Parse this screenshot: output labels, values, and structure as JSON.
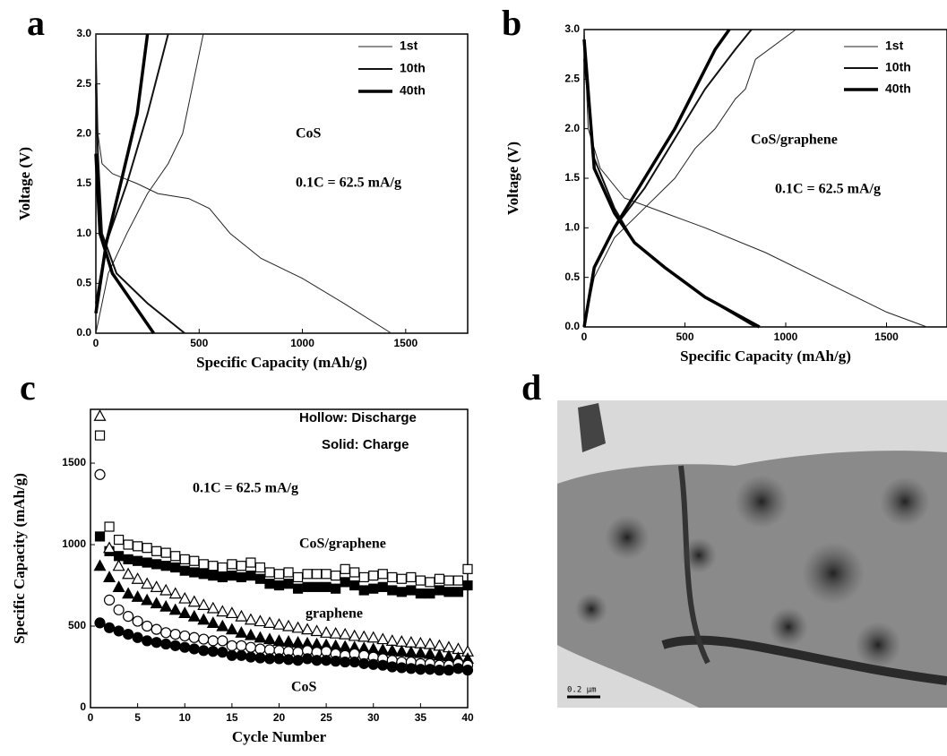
{
  "chart_data": [
    {
      "type": "line",
      "panel_label": "a",
      "x_label": "Specific Capacity (mAh/g)",
      "y_label": "Voltage (V)",
      "xlim": [
        0,
        1800
      ],
      "xticks": [
        0,
        500,
        1000,
        1500
      ],
      "ylim": [
        0,
        3
      ],
      "yticks": [
        {
          "value": 0,
          "label": "0.0"
        },
        0.5,
        {
          "value": 1,
          "label": "1.0"
        },
        1.5,
        {
          "value": 2,
          "label": "2.0"
        },
        2.5,
        {
          "value": 3,
          "label": "3.0"
        }
      ],
      "annotations": [
        "CoS",
        "0.1C = 62.5 mA/g"
      ],
      "series": [
        {
          "name": "1st",
          "color": "#222",
          "width": 1,
          "x": [
            0,
            10,
            30,
            80,
            200,
            300,
            450,
            550,
            650,
            800,
            1000,
            1200,
            1430,
            null,
            0,
            60,
            150,
            250,
            350,
            420,
            470,
            520
          ],
          "values": [
            3.0,
            2.0,
            1.7,
            1.6,
            1.5,
            1.4,
            1.35,
            1.25,
            1.0,
            0.75,
            0.55,
            0.3,
            0,
            null,
            0,
            0.6,
            1.0,
            1.4,
            1.7,
            2.0,
            2.5,
            3.0
          ]
        },
        {
          "name": "10th",
          "color": "#111",
          "width": 2,
          "x": [
            0,
            10,
            30,
            100,
            250,
            430,
            null,
            0,
            50,
            150,
            250,
            350
          ],
          "values": [
            2.5,
            1.8,
            1.0,
            0.6,
            0.3,
            0,
            null,
            0.3,
            0.9,
            1.5,
            2.2,
            3.0
          ]
        },
        {
          "name": "40th",
          "color": "#000",
          "width": 3.5,
          "x": [
            0,
            20,
            80,
            180,
            280,
            null,
            0,
            50,
            120,
            200,
            250
          ],
          "values": [
            1.8,
            1.0,
            0.6,
            0.3,
            0,
            null,
            0.2,
            0.9,
            1.5,
            2.2,
            3.0
          ]
        }
      ]
    },
    {
      "type": "line",
      "panel_label": "b",
      "x_label": "Specific Capacity (mAh/g)",
      "y_label": "Voltage (V)",
      "xlim": [
        0,
        1800
      ],
      "xticks": [
        0,
        500,
        1000,
        1500
      ],
      "ylim": [
        0,
        3
      ],
      "yticks": [
        {
          "value": 0,
          "label": "0.0"
        },
        0.5,
        {
          "value": 1,
          "label": "1.0"
        },
        1.5,
        {
          "value": 2,
          "label": "2.0"
        },
        2.5,
        {
          "value": 3,
          "label": "3.0"
        }
      ],
      "annotations": [
        "CoS/graphene",
        "0.1C = 62.5 mA/g"
      ],
      "series": [
        {
          "name": "1st",
          "color": "#222",
          "width": 1,
          "x": [
            0,
            20,
            80,
            200,
            400,
            600,
            900,
            1200,
            1500,
            1700,
            null,
            0,
            50,
            150,
            300,
            450,
            550,
            650,
            750,
            800,
            850,
            1050
          ],
          "values": [
            3.0,
            2.0,
            1.6,
            1.3,
            1.15,
            1.0,
            0.75,
            0.45,
            0.15,
            0,
            null,
            0,
            0.5,
            0.9,
            1.2,
            1.5,
            1.8,
            2.0,
            2.3,
            2.4,
            2.7,
            3.0
          ]
        },
        {
          "name": "10th",
          "color": "#111",
          "width": 2,
          "x": [
            0,
            50,
            150,
            250,
            400,
            600,
            850,
            null,
            0,
            50,
            150,
            300,
            450,
            600,
            750,
            830
          ],
          "values": [
            2.7,
            1.7,
            1.2,
            0.85,
            0.6,
            0.3,
            0,
            null,
            0,
            0.6,
            1.0,
            1.4,
            1.9,
            2.4,
            2.8,
            3.0
          ]
        },
        {
          "name": "40th",
          "color": "#000",
          "width": 3.5,
          "x": [
            0,
            50,
            150,
            250,
            400,
            600,
            870,
            null,
            0,
            50,
            150,
            300,
            450,
            550,
            650,
            720
          ],
          "values": [
            2.9,
            1.6,
            1.15,
            0.85,
            0.6,
            0.3,
            0,
            null,
            0,
            0.6,
            1.0,
            1.5,
            2.0,
            2.4,
            2.8,
            3.0
          ]
        }
      ]
    },
    {
      "type": "scatter",
      "panel_label": "c",
      "x_label": "Cycle Number",
      "y_label": "Specific Capacity (mAh/g)",
      "xlim": [
        0,
        40
      ],
      "xticks": [
        0,
        5,
        10,
        15,
        20,
        25,
        30,
        35,
        40
      ],
      "ylim": [
        0,
        1830
      ],
      "yticks": [
        0,
        500,
        1000,
        1500
      ],
      "annotations": [
        "Hollow: Discharge",
        "Solid: Charge",
        "0.1C = 62.5 mA/g",
        "CoS/graphene",
        "graphene",
        "CoS"
      ],
      "x": [
        1,
        2,
        3,
        4,
        5,
        6,
        7,
        8,
        9,
        10,
        11,
        12,
        13,
        14,
        15,
        16,
        17,
        18,
        19,
        20,
        21,
        22,
        23,
        24,
        25,
        26,
        27,
        28,
        29,
        30,
        31,
        32,
        33,
        34,
        35,
        36,
        37,
        38,
        39,
        40
      ],
      "series": [
        {
          "marker": "square",
          "fill": "#fff",
          "color": "#000",
          "values": [
            1670,
            1110,
            1030,
            1000,
            990,
            980,
            960,
            950,
            930,
            910,
            900,
            880,
            870,
            860,
            880,
            870,
            890,
            860,
            830,
            820,
            830,
            800,
            820,
            820,
            820,
            810,
            850,
            830,
            800,
            810,
            820,
            800,
            790,
            800,
            780,
            770,
            790,
            780,
            780,
            850
          ]
        },
        {
          "marker": "square",
          "fill": "#000",
          "color": "#000",
          "values": [
            1050,
            960,
            930,
            910,
            900,
            890,
            880,
            870,
            860,
            840,
            830,
            820,
            810,
            800,
            810,
            800,
            810,
            790,
            760,
            750,
            760,
            730,
            740,
            740,
            740,
            730,
            770,
            750,
            720,
            730,
            740,
            720,
            710,
            720,
            700,
            700,
            720,
            710,
            710,
            750
          ]
        },
        {
          "marker": "triangle",
          "fill": "#fff",
          "color": "#000",
          "values": [
            1790,
            980,
            870,
            820,
            790,
            760,
            740,
            720,
            700,
            670,
            650,
            630,
            610,
            590,
            580,
            560,
            540,
            530,
            520,
            510,
            500,
            490,
            480,
            470,
            460,
            455,
            450,
            440,
            435,
            430,
            420,
            410,
            405,
            400,
            395,
            390,
            380,
            370,
            360,
            345
          ]
        },
        {
          "marker": "triangle",
          "fill": "#000",
          "color": "#000",
          "values": [
            870,
            800,
            740,
            700,
            680,
            660,
            640,
            620,
            600,
            580,
            560,
            540,
            520,
            500,
            480,
            460,
            445,
            430,
            420,
            410,
            405,
            400,
            395,
            390,
            385,
            380,
            375,
            370,
            365,
            360,
            355,
            350,
            345,
            340,
            335,
            330,
            320,
            315,
            305,
            300
          ]
        },
        {
          "marker": "circle",
          "fill": "#fff",
          "color": "#000",
          "values": [
            1430,
            660,
            600,
            560,
            530,
            500,
            480,
            460,
            450,
            440,
            430,
            420,
            410,
            410,
            380,
            380,
            370,
            360,
            355,
            350,
            345,
            340,
            350,
            340,
            345,
            330,
            320,
            330,
            320,
            310,
            300,
            290,
            280,
            280,
            270,
            270,
            260,
            260,
            270,
            260
          ]
        },
        {
          "marker": "circle",
          "fill": "#000",
          "color": "#000",
          "values": [
            520,
            490,
            470,
            450,
            430,
            410,
            400,
            390,
            380,
            370,
            360,
            350,
            345,
            340,
            320,
            320,
            310,
            305,
            300,
            300,
            295,
            290,
            300,
            290,
            290,
            285,
            280,
            280,
            270,
            265,
            260,
            250,
            245,
            240,
            235,
            235,
            230,
            230,
            240,
            230
          ]
        }
      ]
    },
    {
      "type": "image",
      "panel_label": "d",
      "scale_bar": "0.2 µm"
    }
  ]
}
